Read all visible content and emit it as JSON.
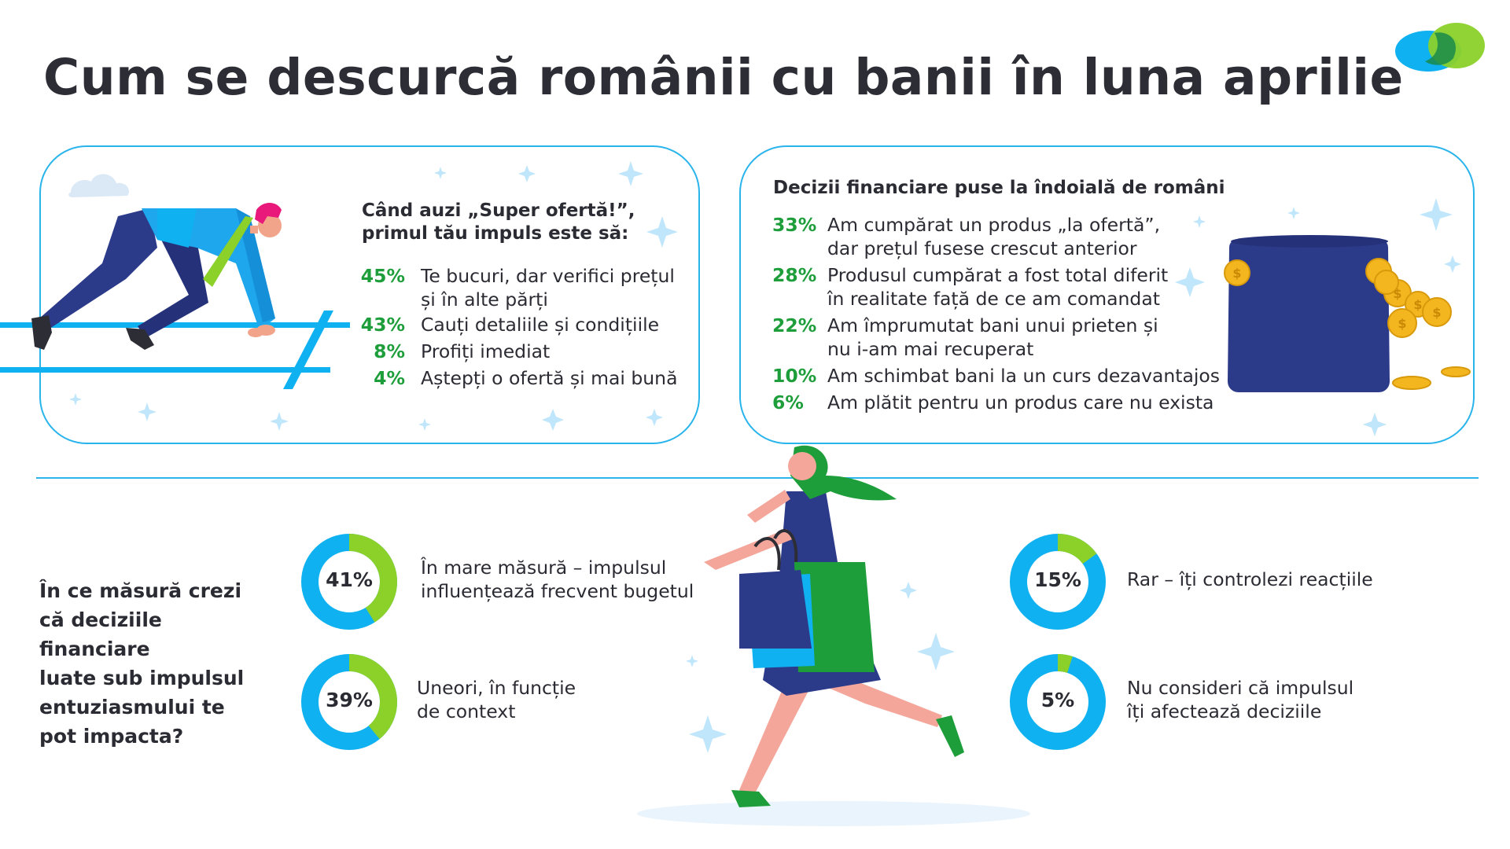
{
  "title": "Cum se descurcă românii cu banii în luna aprilie",
  "colors": {
    "accent_blue": "#0fb1f0",
    "accent_green": "#1e9e3a",
    "donut_green": "#8bd12a",
    "donut_blue": "#0fb1f0",
    "navy": "#2c3a8a"
  },
  "impulse_card": {
    "question": [
      "Când auzi „Super ofertă!”,",
      "primul tău impuls este să:"
    ],
    "items": [
      {
        "pct": "45%",
        "lines": [
          "Te bucuri, dar verifici prețul",
          "și în alte părți"
        ]
      },
      {
        "pct": "43%",
        "lines": [
          "Cauți detaliile și condițiile"
        ]
      },
      {
        "pct": "8%",
        "lines": [
          "Profiți imediat"
        ]
      },
      {
        "pct": "4%",
        "lines": [
          "Aștepți o ofertă și mai bună"
        ]
      }
    ]
  },
  "decisions_card": {
    "heading": "Decizii financiare puse la îndoială de români",
    "items": [
      {
        "pct": "33%",
        "lines": [
          "Am cumpărat un produs „la ofertă”,",
          "dar prețul fusese crescut anterior"
        ]
      },
      {
        "pct": "28%",
        "lines": [
          "Produsul cumpărat a fost total diferit",
          "în realitate față de ce am comandat"
        ]
      },
      {
        "pct": "22%",
        "lines": [
          "Am împrumutat bani unui prieten și",
          "nu i-am mai recuperat"
        ]
      },
      {
        "pct": "10%",
        "lines": [
          "Am schimbat bani la un curs dezavantajos"
        ]
      },
      {
        "pct": "6%",
        "lines": [
          "Am plătit pentru un produs care nu exista"
        ]
      }
    ]
  },
  "impact_question": [
    "În ce măsură crezi",
    "că deciziile financiare",
    "luate sub impulsul",
    "entuziasmului te",
    "pot impacta?"
  ],
  "donuts": [
    {
      "pct": "41%",
      "value": 0.41,
      "lines": [
        "În mare măsură – impulsul",
        "influențează frecvent bugetul"
      ]
    },
    {
      "pct": "39%",
      "value": 0.39,
      "lines": [
        "Uneori, în funcție",
        "de context"
      ]
    },
    {
      "pct": "15%",
      "value": 0.15,
      "lines": [
        "Rar – îți controlezi reacțiile"
      ]
    },
    {
      "pct": "5%",
      "value": 0.05,
      "lines": [
        "Nu consideri că impulsul",
        "îți afectează deciziile"
      ]
    }
  ]
}
